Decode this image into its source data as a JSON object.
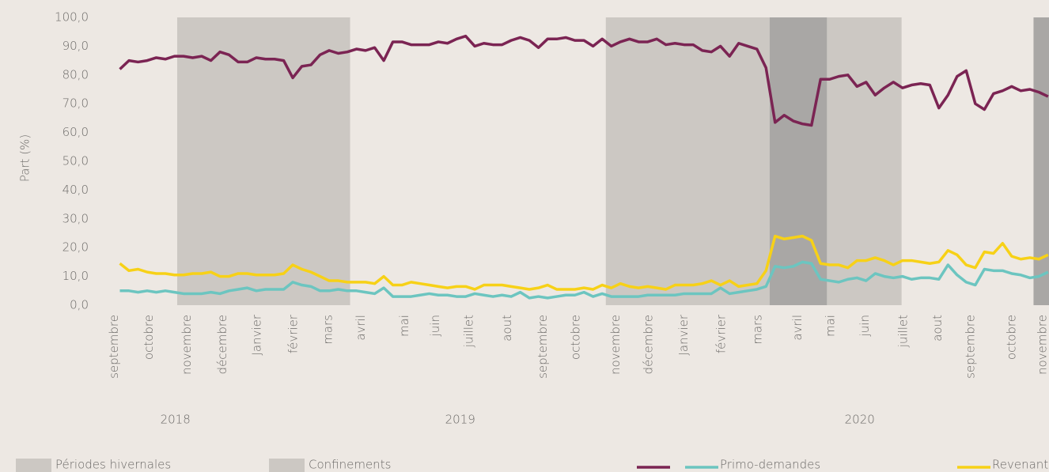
{
  "chart_data": {
    "type": "line",
    "y_label": "Part (%)",
    "ylim": [
      0,
      100
    ],
    "yticks": [
      {
        "value": 0,
        "label": "0,0"
      },
      {
        "value": 10,
        "label": "10,0"
      },
      {
        "value": 20,
        "label": "20,0"
      },
      {
        "value": 30,
        "label": "30,0"
      },
      {
        "value": 40,
        "label": "40,0"
      },
      {
        "value": 50,
        "label": "50,0"
      },
      {
        "value": 60,
        "label": "60,0"
      },
      {
        "value": 70,
        "label": "70,0"
      },
      {
        "value": 80,
        "label": "80,0"
      },
      {
        "value": 90,
        "label": "90,0"
      },
      {
        "value": 100,
        "label": "100,0"
      }
    ],
    "xlim": [
      0,
      103.1
    ],
    "xticks": [
      {
        "value": 0.4,
        "label": "septembre"
      },
      {
        "value": 4.2,
        "label": "octobre"
      },
      {
        "value": 8.4,
        "label": "novembre"
      },
      {
        "value": 12.3,
        "label": "décembre"
      },
      {
        "value": 16.1,
        "label": "Janvier"
      },
      {
        "value": 20.1,
        "label": "février"
      },
      {
        "value": 23.9,
        "label": "mars"
      },
      {
        "value": 27.5,
        "label": "avril"
      },
      {
        "value": 32.3,
        "label": "mai"
      },
      {
        "value": 35.7,
        "label": "juin"
      },
      {
        "value": 39.4,
        "label": "juillet"
      },
      {
        "value": 43.6,
        "label": "aout"
      },
      {
        "value": 47.5,
        "label": "septembre"
      },
      {
        "value": 51.1,
        "label": "octobre"
      },
      {
        "value": 55.5,
        "label": "novembre"
      },
      {
        "value": 59.1,
        "label": "décembre"
      },
      {
        "value": 63.0,
        "label": "Janvier"
      },
      {
        "value": 67.1,
        "label": "février"
      },
      {
        "value": 71.1,
        "label": "mars"
      },
      {
        "value": 75.5,
        "label": "avril"
      },
      {
        "value": 79.1,
        "label": "mai"
      },
      {
        "value": 82.9,
        "label": "juin"
      },
      {
        "value": 87.1,
        "label": "juillet"
      },
      {
        "value": 90.9,
        "label": "aout"
      },
      {
        "value": 94.5,
        "label": "septembre"
      },
      {
        "value": 99.0,
        "label": "octobre"
      },
      {
        "value": 102.4,
        "label": "novembre"
      }
    ],
    "years": [
      {
        "value": 7.1,
        "label": "2018"
      },
      {
        "value": 38.4,
        "label": "2019"
      },
      {
        "value": 82.3,
        "label": "2020"
      }
    ],
    "grid": false,
    "periods": [
      {
        "name": "Périodes hivernales",
        "color": "#ccc8c3",
        "ranges": [
          [
            7.3,
            26.3
          ],
          [
            54.4,
            72.4
          ],
          [
            78.7,
            86.9
          ]
        ]
      },
      {
        "name": "Confinements",
        "color": "#a9a7a5",
        "ranges": [
          [
            72.4,
            78.7
          ],
          [
            101.4,
            103.1
          ]
        ]
      }
    ],
    "x": [
      1,
      2,
      3,
      4,
      5,
      6,
      7,
      8,
      9,
      10,
      11,
      12,
      13,
      14,
      15,
      16,
      17,
      18,
      19,
      20,
      21,
      22,
      23,
      24,
      25,
      26,
      27,
      28,
      29,
      30,
      31,
      32,
      33,
      34,
      35,
      36,
      37,
      38,
      39,
      40,
      41,
      42,
      43,
      44,
      45,
      46,
      47,
      48,
      49,
      50,
      51,
      52,
      53,
      54,
      55,
      56,
      57,
      58,
      59,
      60,
      61,
      62,
      63,
      64,
      65,
      66,
      67,
      68,
      69,
      70,
      71,
      72,
      73,
      74,
      75,
      76,
      77,
      78,
      79,
      80,
      81,
      82,
      83,
      84,
      85,
      86,
      87,
      88,
      89,
      90,
      91,
      92,
      93,
      94,
      95,
      96,
      97,
      98,
      99,
      100,
      101,
      102,
      103
    ],
    "series": [
      {
        "color": "#7b2453",
        "values": [
          82,
          85,
          84.5,
          85,
          86,
          85.5,
          86.5,
          86.5,
          86,
          86.5,
          85,
          88,
          87,
          84.5,
          84.5,
          86,
          85.5,
          85.5,
          85,
          79,
          83,
          83.5,
          87,
          88.5,
          87.5,
          88,
          89,
          88.5,
          89.5,
          85,
          91.5,
          91.5,
          90.5,
          90.5,
          90.5,
          91.5,
          91,
          92.5,
          93.5,
          90,
          91,
          90.5,
          90.5,
          92,
          93,
          92,
          89.5,
          92.5,
          92.5,
          93,
          92,
          92,
          90,
          92.5,
          90,
          91.5,
          92.5,
          91.5,
          91.5,
          92.5,
          90.5,
          91,
          90.5,
          90.5,
          88.5,
          88,
          90,
          86.5,
          91,
          90,
          89,
          82.5,
          63.5,
          66,
          64,
          63,
          62.5,
          78.5,
          78.5,
          79.5,
          80,
          76,
          77.5,
          73,
          75.5,
          77.5,
          75.5,
          76.5,
          77,
          76.5,
          68.5,
          73,
          79.5,
          81.5,
          70,
          68,
          73.5,
          74.5,
          76,
          74.5,
          75,
          74,
          72.5
        ]
      },
      {
        "name": "Primo-demandes",
        "color": "#6cc5c0",
        "values": [
          5,
          5,
          4.5,
          5,
          4.5,
          5,
          4.5,
          4,
          4,
          4,
          4.5,
          4,
          5,
          5.5,
          6,
          5,
          5.5,
          5.5,
          5.5,
          8,
          7,
          6.5,
          5,
          5,
          5.5,
          5,
          5,
          4.5,
          4,
          6,
          3,
          3,
          3,
          3.5,
          4,
          3.5,
          3.5,
          3,
          3,
          4,
          3.5,
          3,
          3.5,
          3,
          4.5,
          2.5,
          3,
          2.5,
          3,
          3.5,
          3.5,
          4.5,
          3,
          4,
          3,
          3,
          3,
          3,
          3.5,
          3.5,
          3.5,
          3.5,
          4,
          4,
          4,
          4,
          6,
          4,
          4.5,
          5,
          5.5,
          6.5,
          13.5,
          13,
          13.5,
          15,
          14.5,
          9,
          8.5,
          8,
          9,
          9.5,
          8.5,
          11,
          10,
          9.5,
          10,
          9,
          9.5,
          9.5,
          9,
          14,
          10.5,
          8,
          7,
          12.5,
          12,
          12,
          11,
          10.5,
          9.5,
          10,
          11.5
        ]
      },
      {
        "name": "Revenants",
        "color": "#f7d117",
        "values": [
          14.5,
          12,
          12.5,
          11.5,
          11,
          11,
          10.5,
          10.5,
          11,
          11,
          11.5,
          10,
          10,
          11,
          11,
          10.5,
          10.5,
          10.5,
          11,
          14,
          12.5,
          11.5,
          10,
          8.5,
          8.5,
          8,
          8,
          8,
          7.5,
          10,
          7,
          7,
          8,
          7.5,
          7,
          6.5,
          6,
          6.5,
          6.5,
          5.5,
          7,
          7,
          7,
          6.5,
          6,
          5.5,
          6,
          7,
          5.5,
          5.5,
          5.5,
          6,
          5.5,
          7,
          6,
          7.5,
          6.5,
          6,
          6.5,
          6,
          5.5,
          7,
          7,
          7,
          7.5,
          8.5,
          7,
          8.5,
          6.5,
          7,
          7.5,
          12,
          24,
          23,
          23.5,
          24,
          22.5,
          14.5,
          14,
          14,
          13,
          15.5,
          15.5,
          16.5,
          15.5,
          14,
          15.5,
          15.5,
          15,
          14.5,
          15,
          19,
          17.5,
          14,
          13,
          18.5,
          18,
          21.5,
          17,
          16,
          16.5,
          16,
          17.5
        ]
      }
    ]
  }
}
